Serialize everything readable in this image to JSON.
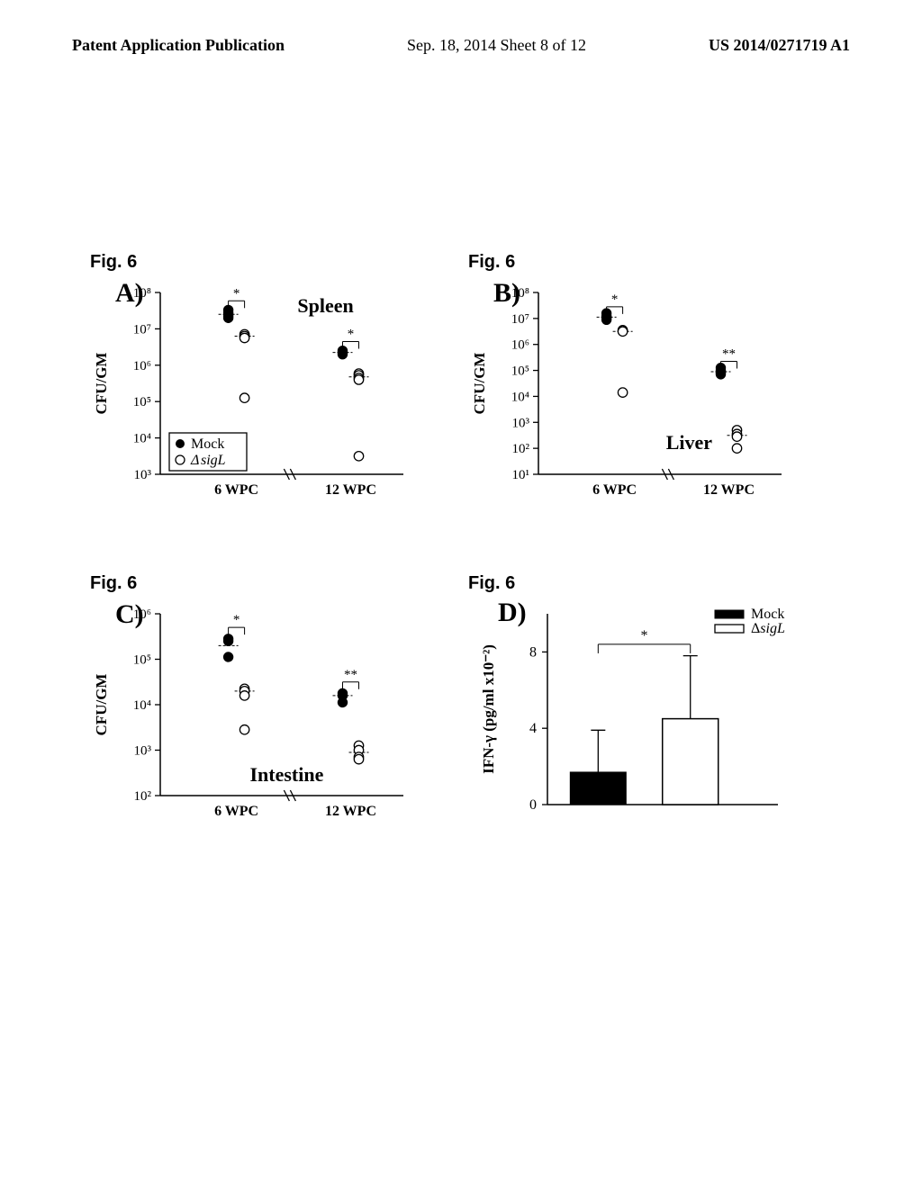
{
  "header": {
    "left": "Patent Application Publication",
    "center": "Sep. 18, 2014  Sheet 8 of 12",
    "right": "US 2014/0271719 A1"
  },
  "fig_label": "Fig. 6",
  "legend_scatter": {
    "mock": "Mock",
    "sigl": "ΔsigL"
  },
  "legend_bar": {
    "mock": "Mock",
    "sigl": "ΔsigL"
  },
  "panels": {
    "A": {
      "letter": "A)",
      "title": "Spleen",
      "ylabel": "CFU/GM",
      "xcats": [
        "6 WPC",
        "12 WPC"
      ],
      "yticks": [
        "10³",
        "10⁴",
        "10⁵",
        "10⁶",
        "10⁷",
        "10⁸"
      ],
      "sig": [
        "*",
        "*"
      ],
      "mock_points": {
        "6": [
          7.52,
          7.45,
          7.4,
          7.35,
          7.3
        ],
        "12": [
          6.4,
          6.35,
          6.3
        ]
      },
      "sigl_points": {
        "6": [
          6.85,
          6.8,
          6.75,
          5.1
        ],
        "12": [
          5.77,
          5.72,
          5.65,
          5.6,
          3.5
        ]
      },
      "mock_mean": {
        "6": 7.4,
        "12": 6.35
      },
      "sigl_mean": {
        "6": 6.8,
        "12": 5.68
      }
    },
    "B": {
      "letter": "B)",
      "title": "Liver",
      "ylabel": "CFU/GM",
      "xcats": [
        "6 WPC",
        "12 WPC"
      ],
      "yticks": [
        "10¹",
        "10²",
        "10³",
        "10⁴",
        "10⁵",
        "10⁶",
        "10⁷",
        "10⁸"
      ],
      "sig": [
        "*",
        "**"
      ],
      "mock_points": {
        "6": [
          7.2,
          7.1,
          7.05,
          7.0,
          6.95
        ],
        "12": [
          5.1,
          5.0,
          4.95,
          4.9,
          4.85
        ]
      },
      "sigl_points": {
        "6": [
          6.55,
          6.5,
          4.15
        ],
        "12": [
          2.7,
          2.55,
          2.45,
          2.0
        ]
      },
      "mock_mean": {
        "6": 7.05,
        "12": 4.95
      },
      "sigl_mean": {
        "6": 6.5,
        "12": 2.5
      }
    },
    "C": {
      "letter": "C)",
      "title": "Intestine",
      "ylabel": "CFU/GM",
      "xcats": [
        "6 WPC",
        "12 WPC"
      ],
      "yticks": [
        "10²",
        "10³",
        "10⁴",
        "10⁵",
        "10⁶"
      ],
      "sig": [
        "*",
        "**"
      ],
      "mock_points": {
        "6": [
          5.45,
          5.4,
          5.05
        ],
        "12": [
          4.25,
          4.2,
          4.05
        ]
      },
      "sigl_points": {
        "6": [
          4.35,
          4.3,
          4.2,
          3.45
        ],
        "12": [
          3.1,
          3.0,
          2.85,
          2.8
        ]
      },
      "mock_mean": {
        "6": 5.3,
        "12": 4.2
      },
      "sigl_mean": {
        "6": 4.3,
        "12": 2.95
      }
    },
    "D": {
      "letter": "D)",
      "ylabel": "IFN-γ (pg/ml x10⁻²)",
      "yticks": [
        "0",
        "4",
        "8"
      ],
      "sig": "*",
      "mock_val": 1.7,
      "mock_err": 2.2,
      "sigl_val": 4.5,
      "sigl_err": 3.3
    }
  },
  "colors": {
    "fill": "#000000",
    "open_fill": "#ffffff",
    "stroke": "#000000",
    "bg": "#ffffff"
  }
}
